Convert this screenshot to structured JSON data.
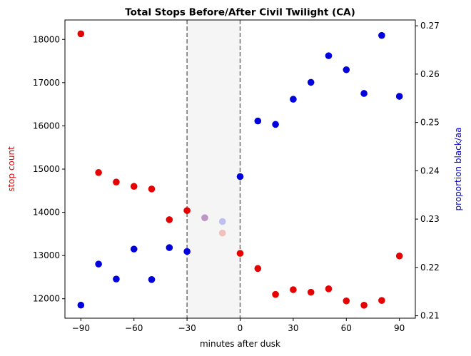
{
  "chart_data": {
    "type": "scatter",
    "title": "Total Stops Before/After Civil Twilight (CA)",
    "xlabel": "minutes after dusk",
    "ylabel_left": "stop count",
    "ylabel_right": "proportion black/aa",
    "xlim": [
      -99,
      99
    ],
    "ylim_left": [
      11550,
      18450
    ],
    "ylim_right": [
      0.2095,
      0.2712
    ],
    "x_ticks": [
      -90,
      -60,
      -30,
      0,
      30,
      60,
      90
    ],
    "y_left_ticks": [
      12000,
      13000,
      14000,
      15000,
      16000,
      17000,
      18000
    ],
    "y_right_ticks": [
      0.21,
      0.22,
      0.23,
      0.24,
      0.25,
      0.26,
      0.27
    ],
    "x_tick_labels": [
      "−90",
      "−60",
      "−30",
      "0",
      "30",
      "60",
      "90"
    ],
    "y_left_tick_labels": [
      "12000",
      "13000",
      "14000",
      "15000",
      "16000",
      "17000",
      "18000"
    ],
    "y_right_tick_labels": [
      "0.21",
      "0.22",
      "0.23",
      "0.24",
      "0.25",
      "0.26",
      "0.27"
    ],
    "twilight_window": {
      "start": -30,
      "end": 0,
      "shade_color": "#f5f5f5",
      "line_color": "#707070"
    },
    "series": [
      {
        "axis": "left",
        "color": "#e60000",
        "points": [
          {
            "x": -90,
            "y": 18130
          },
          {
            "x": -80,
            "y": 14920
          },
          {
            "x": -70,
            "y": 14700
          },
          {
            "x": -60,
            "y": 14600
          },
          {
            "x": -50,
            "y": 14540
          },
          {
            "x": -40,
            "y": 13830
          },
          {
            "x": -30,
            "y": 14040
          },
          {
            "x": -20,
            "y": 13870,
            "faded": true
          },
          {
            "x": -10,
            "y": 13520,
            "faded": true
          },
          {
            "x": 0,
            "y": 13050
          },
          {
            "x": 10,
            "y": 12700
          },
          {
            "x": 20,
            "y": 12100
          },
          {
            "x": 30,
            "y": 12210
          },
          {
            "x": 40,
            "y": 12150
          },
          {
            "x": 50,
            "y": 12230
          },
          {
            "x": 60,
            "y": 11950
          },
          {
            "x": 70,
            "y": 11850
          },
          {
            "x": 80,
            "y": 11960
          },
          {
            "x": 90,
            "y": 12990
          }
        ]
      },
      {
        "axis": "right",
        "color": "#0000dd",
        "points": [
          {
            "x": -90,
            "y": 0.2122
          },
          {
            "x": -80,
            "y": 0.2207
          },
          {
            "x": -70,
            "y": 0.2176
          },
          {
            "x": -60,
            "y": 0.2238
          },
          {
            "x": -50,
            "y": 0.2175
          },
          {
            "x": -40,
            "y": 0.2241
          },
          {
            "x": -30,
            "y": 0.2233
          },
          {
            "x": -20,
            "y": 0.2303,
            "faded": true
          },
          {
            "x": -10,
            "y": 0.2295,
            "faded": true
          },
          {
            "x": 0,
            "y": 0.2388
          },
          {
            "x": 10,
            "y": 0.2503
          },
          {
            "x": 20,
            "y": 0.2496
          },
          {
            "x": 30,
            "y": 0.2548
          },
          {
            "x": 40,
            "y": 0.2583
          },
          {
            "x": 50,
            "y": 0.2638
          },
          {
            "x": 60,
            "y": 0.2609
          },
          {
            "x": 70,
            "y": 0.256
          },
          {
            "x": 80,
            "y": 0.268
          },
          {
            "x": 90,
            "y": 0.2554
          }
        ]
      }
    ],
    "legend": "none",
    "grid": false
  }
}
